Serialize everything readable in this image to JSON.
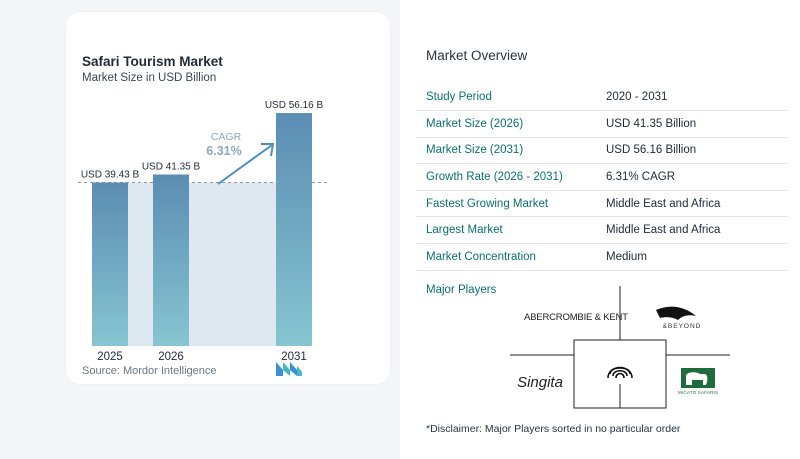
{
  "chart_data": {
    "type": "bar",
    "title": "Safari Tourism Market",
    "subtitle": "Market Size in USD Billion",
    "categories": [
      "2025",
      "2026",
      "2031"
    ],
    "values": [
      39.43,
      41.35,
      56.16
    ],
    "data_labels": [
      "USD 39.43 B",
      "USD 41.35 B",
      "USD 56.16 B"
    ],
    "ylim": [
      0,
      60
    ],
    "cagr_label": "CAGR",
    "cagr_value": "6.31%",
    "grid": false,
    "colors": {
      "bar_top": "#5b8db3",
      "bar_bottom": "#86c5d1",
      "band": "#dde8f0",
      "arrow": "#4f8fbf",
      "cagr": "#8aa9c0"
    }
  },
  "source": "Source: Mordor Intelligence",
  "overview": {
    "title": "Market Overview",
    "rows": [
      {
        "label": "Study Period",
        "value": "2020 - 2031"
      },
      {
        "label": "Market Size (2026)",
        "value": "USD 41.35 Billion"
      },
      {
        "label": "Market Size (2031)",
        "value": "USD 56.16 Billion"
      },
      {
        "label": "Growth Rate (2026 - 2031)",
        "value": "6.31% CAGR"
      },
      {
        "label": "Fastest Growing Market",
        "value": "Middle East and Africa"
      },
      {
        "label": "Largest Market",
        "value": "Middle East and Africa"
      },
      {
        "label": "Market Concentration",
        "value": "Medium"
      }
    ],
    "players_label": "Major Players",
    "players": [
      "ABERCROMBIE & KENT",
      "&BEYOND",
      "Singita",
      "MICATO SAFARIS"
    ],
    "disclaimer": "*Disclaimer: Major Players sorted in no particular order"
  }
}
